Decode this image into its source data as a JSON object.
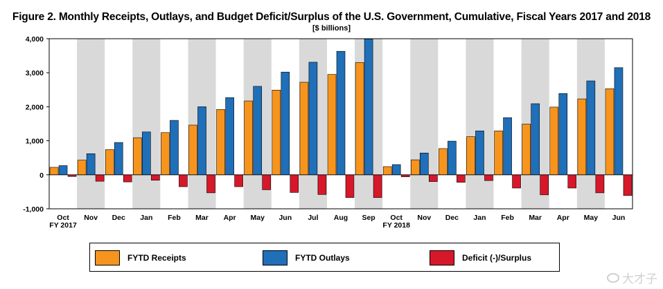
{
  "header": {
    "title": "Figure 2. Monthly Receipts, Outlays, and Budget Deficit/Surplus of the U.S. Government, Cumulative, Fiscal Years 2017 and 2018",
    "subtitle": "[$ billions]"
  },
  "chart_data": {
    "type": "bar",
    "title": "Figure 2. Monthly Receipts, Outlays, and Budget Deficit/Surplus of the U.S. Government, Cumulative, Fiscal Years 2017 and 2018",
    "subtitle": "[$ billions]",
    "xlabel": "",
    "ylabel": "",
    "ylim": [
      -1000,
      4000
    ],
    "yticks": [
      4000,
      3000,
      2000,
      1000,
      0,
      -1000
    ],
    "ytick_labels": [
      "4,000",
      "3,000",
      "2,000",
      "1,000",
      "0",
      "-1,000"
    ],
    "grid": false,
    "alternating_shaded_columns": true,
    "fiscal_year_labels": [
      {
        "label": "FY 2017",
        "category_index": 0
      },
      {
        "label": "FY 2018",
        "category_index": 12
      }
    ],
    "categories": [
      "Oct",
      "Nov",
      "Dec",
      "Jan",
      "Feb",
      "Mar",
      "Apr",
      "May",
      "Jun",
      "Jul",
      "Aug",
      "Sep",
      "Oct",
      "Nov",
      "Dec",
      "Jan",
      "Feb",
      "Mar",
      "Apr",
      "May",
      "Jun"
    ],
    "series": [
      {
        "name": "FYTD Receipts",
        "color": "#f7941d",
        "values": [
          220,
          430,
          740,
          1090,
          1240,
          1460,
          1920,
          2170,
          2490,
          2720,
          2950,
          3300,
          240,
          440,
          770,
          1120,
          1290,
          1490,
          1990,
          2230,
          2530
        ]
      },
      {
        "name": "FYTD Outlays",
        "color": "#1f6fb9",
        "values": [
          270,
          620,
          950,
          1260,
          1600,
          2000,
          2270,
          2600,
          3020,
          3310,
          3630,
          3990,
          300,
          640,
          990,
          1290,
          1680,
          2090,
          2390,
          2760,
          3150
        ]
      },
      {
        "name": "Deficit (-)/Surplus",
        "color": "#d7182a",
        "values": [
          -50,
          -190,
          -210,
          -160,
          -350,
          -530,
          -350,
          -440,
          -520,
          -580,
          -670,
          -670,
          -60,
          -200,
          -220,
          -170,
          -390,
          -590,
          -390,
          -530,
          -610
        ]
      }
    ]
  },
  "legend": {
    "items": [
      {
        "label": "FYTD Receipts",
        "color": "#f7941d"
      },
      {
        "label": "FYTD Outlays",
        "color": "#1f6fb9"
      },
      {
        "label": "Deficit (-)/Surplus",
        "color": "#d7182a"
      }
    ]
  },
  "watermark": {
    "text": "大才子"
  }
}
